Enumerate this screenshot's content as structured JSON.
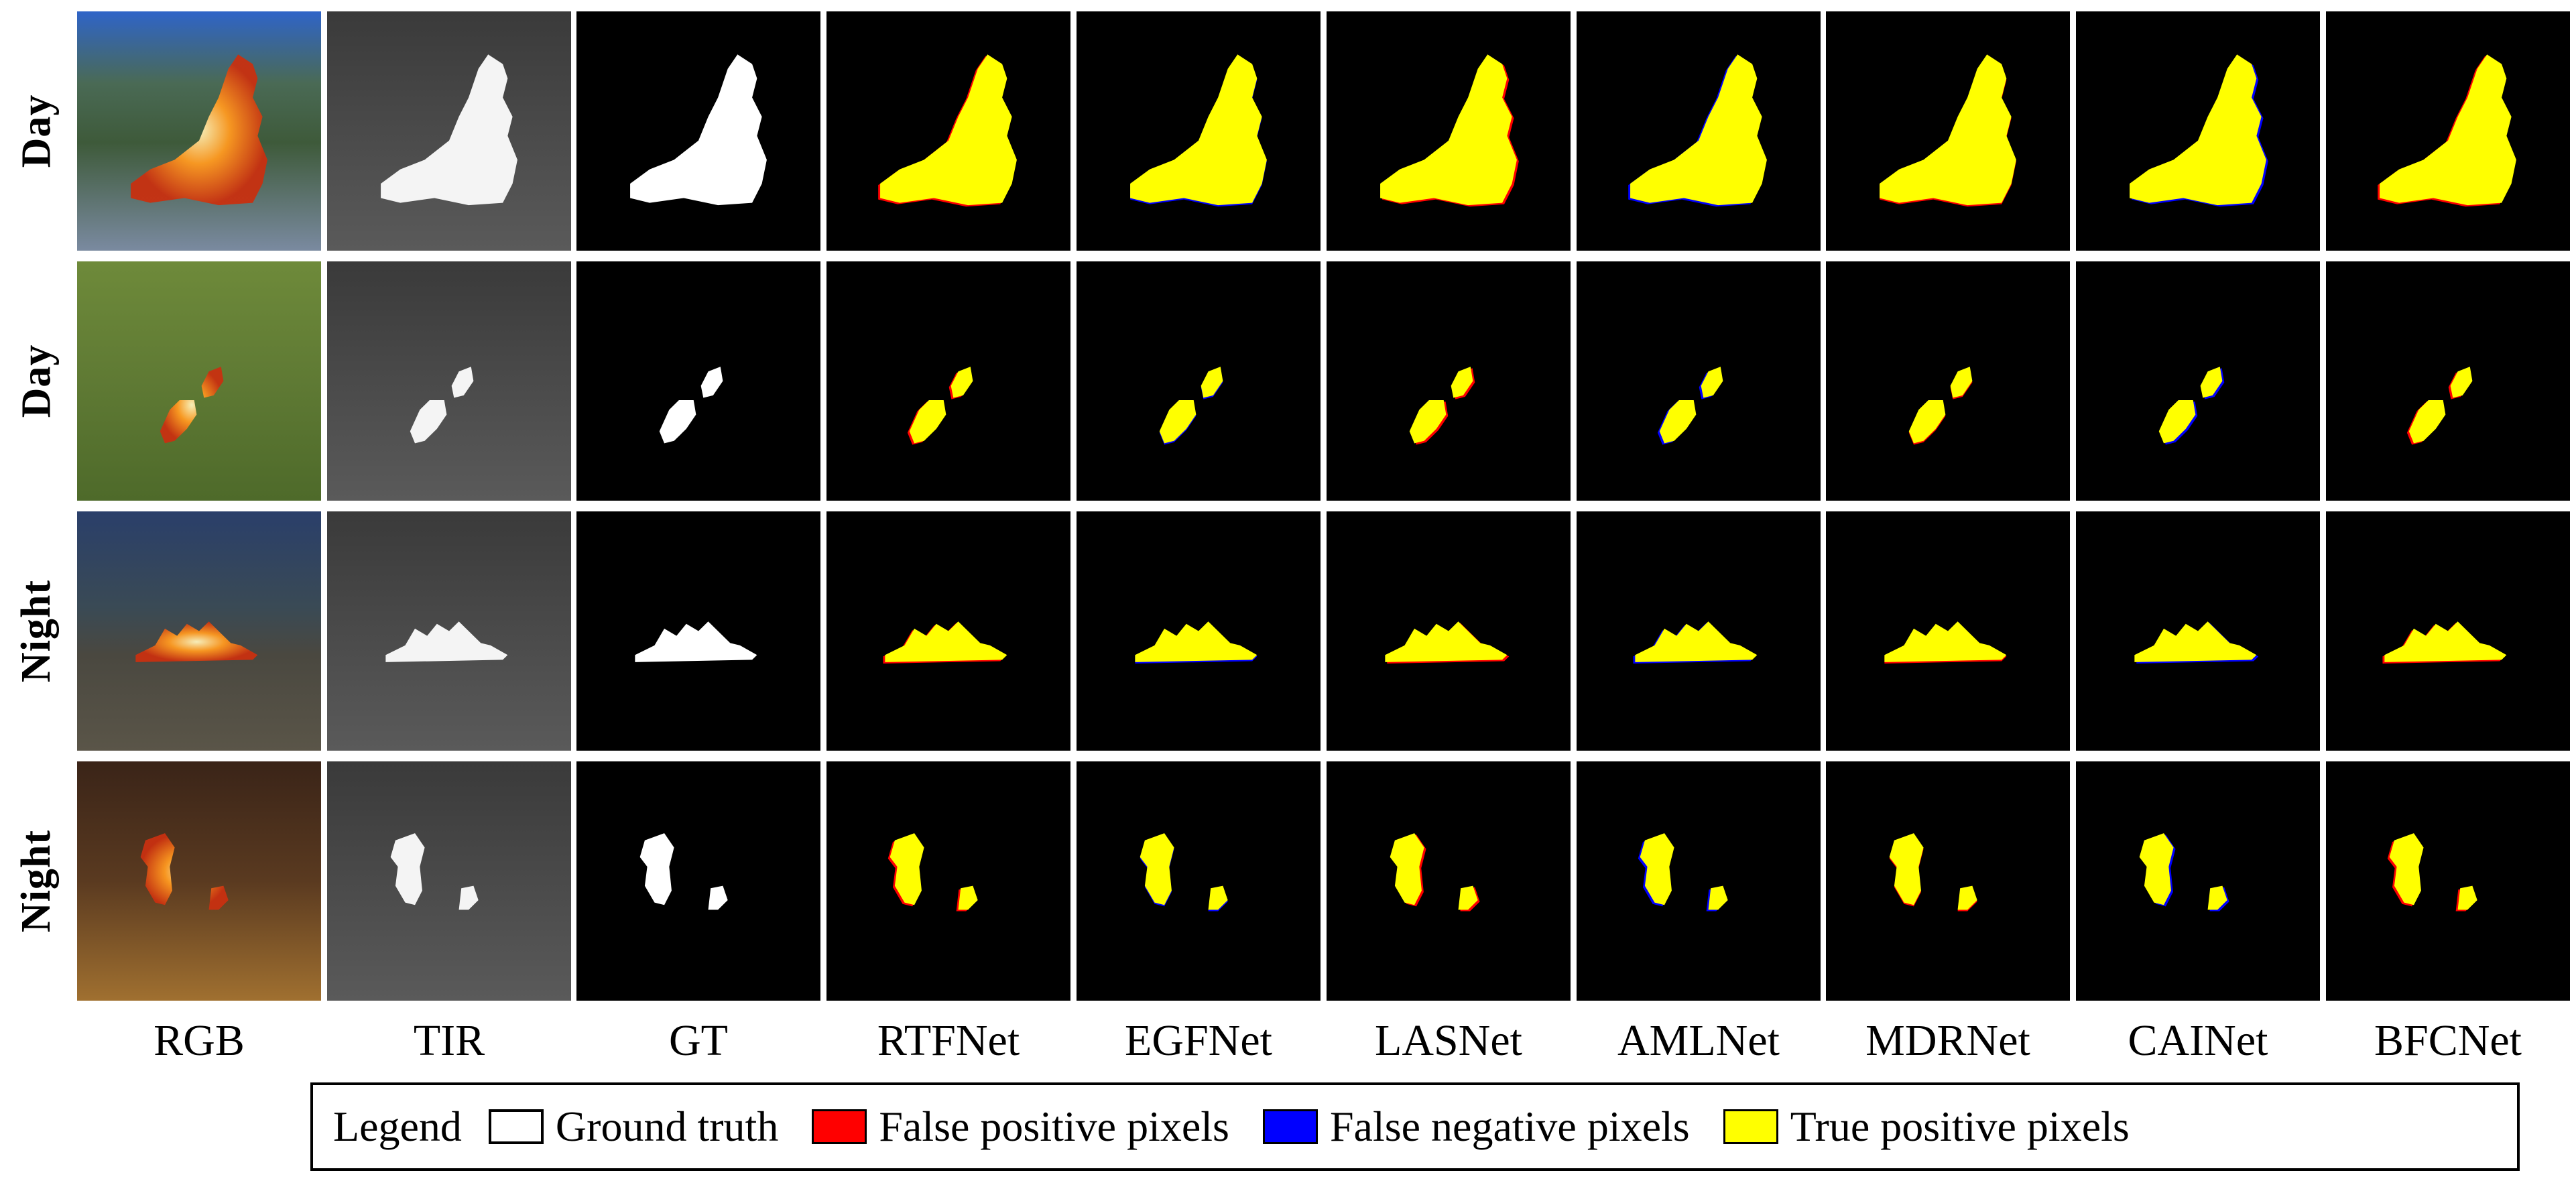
{
  "rows": [
    {
      "label": "Day"
    },
    {
      "label": "Day"
    },
    {
      "label": "Night"
    },
    {
      "label": "Night"
    }
  ],
  "columns": [
    {
      "label": "RGB",
      "kind": "rgb"
    },
    {
      "label": "TIR",
      "kind": "tir"
    },
    {
      "label": "GT",
      "kind": "gt"
    },
    {
      "label": "RTFNet",
      "kind": "pred"
    },
    {
      "label": "EGFNet",
      "kind": "pred"
    },
    {
      "label": "LASNet",
      "kind": "pred"
    },
    {
      "label": "AMLNet",
      "kind": "pred"
    },
    {
      "label": "MDRNet",
      "kind": "pred"
    },
    {
      "label": "CAINet",
      "kind": "pred"
    },
    {
      "label": "BFCNet",
      "kind": "pred"
    }
  ],
  "legend": {
    "title": "Legend",
    "items": [
      {
        "label": "Ground truth",
        "color": "#ffffff"
      },
      {
        "label": "False positive pixels",
        "color": "#ff0000"
      },
      {
        "label": "False negative pixels",
        "color": "#0000ff"
      },
      {
        "label": "True positive pixels",
        "color": "#ffff00"
      }
    ]
  },
  "colors": {
    "tp": "#ffff00",
    "fp": "#ff0000",
    "fn": "#0000ff",
    "gt": "#ffffff",
    "background": "#000000"
  }
}
